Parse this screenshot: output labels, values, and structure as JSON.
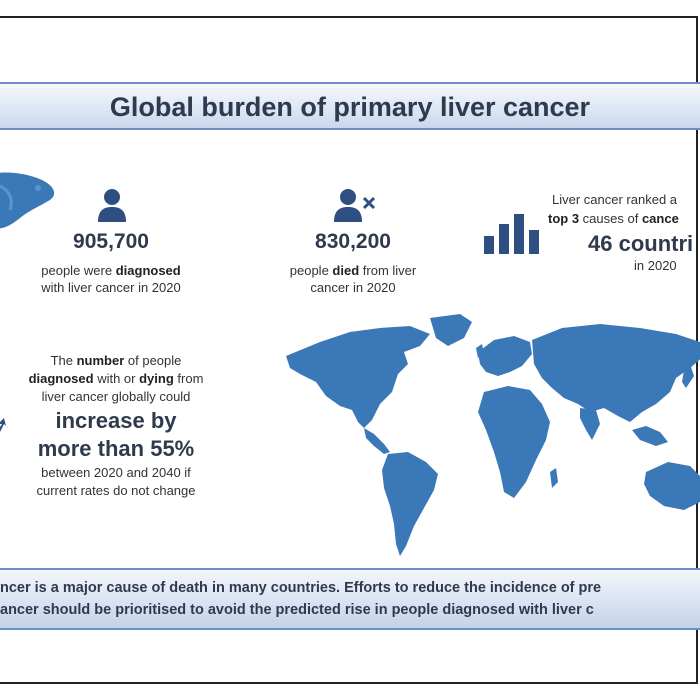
{
  "title": "Global burden of primary liver cancer",
  "stats": {
    "diagnosed": {
      "number": "905,700",
      "line1_pre": "people were ",
      "line1_bold": "diagnosed",
      "line2": "with liver cancer in 2020"
    },
    "died": {
      "number": "830,200",
      "line1_pre": "people ",
      "line1_bold": "died",
      "line1_post": " from liver",
      "line2": "cancer in 2020"
    },
    "ranked": {
      "line1": "Liver cancer ranked a",
      "line2_bold": "top 3",
      "line2_mid": " causes of ",
      "line2_bold2": "cance",
      "countries": "46 countri",
      "year": "in 2020"
    }
  },
  "projection": {
    "line1_pre": "The ",
    "line1_bold": "number",
    "line1_post": " of people",
    "line2_bold1": "diagnosed",
    "line2_mid": " with or ",
    "line2_bold2": "dying",
    "line2_post": " from",
    "line3": "liver cancer globally could",
    "big1": "increase by",
    "big2": "more than 55%",
    "line4": "between 2020 and 2040 if",
    "line5": "current rates do not change"
  },
  "footer": {
    "line1": "ncer is a major cause of death in many countries. Efforts to reduce the incidence of pre",
    "line2": "ancer should be prioritised to avoid the predicted rise in people diagnosed with liver c"
  },
  "colors": {
    "icon_blue": "#2f4f82",
    "map_blue": "#3b78b8",
    "title_border": "#6d8fc8"
  },
  "icons": [
    "liver-icon",
    "person-icon",
    "person-x-icon",
    "bar-chart-icon",
    "trend-arrow-icon",
    "world-map"
  ]
}
